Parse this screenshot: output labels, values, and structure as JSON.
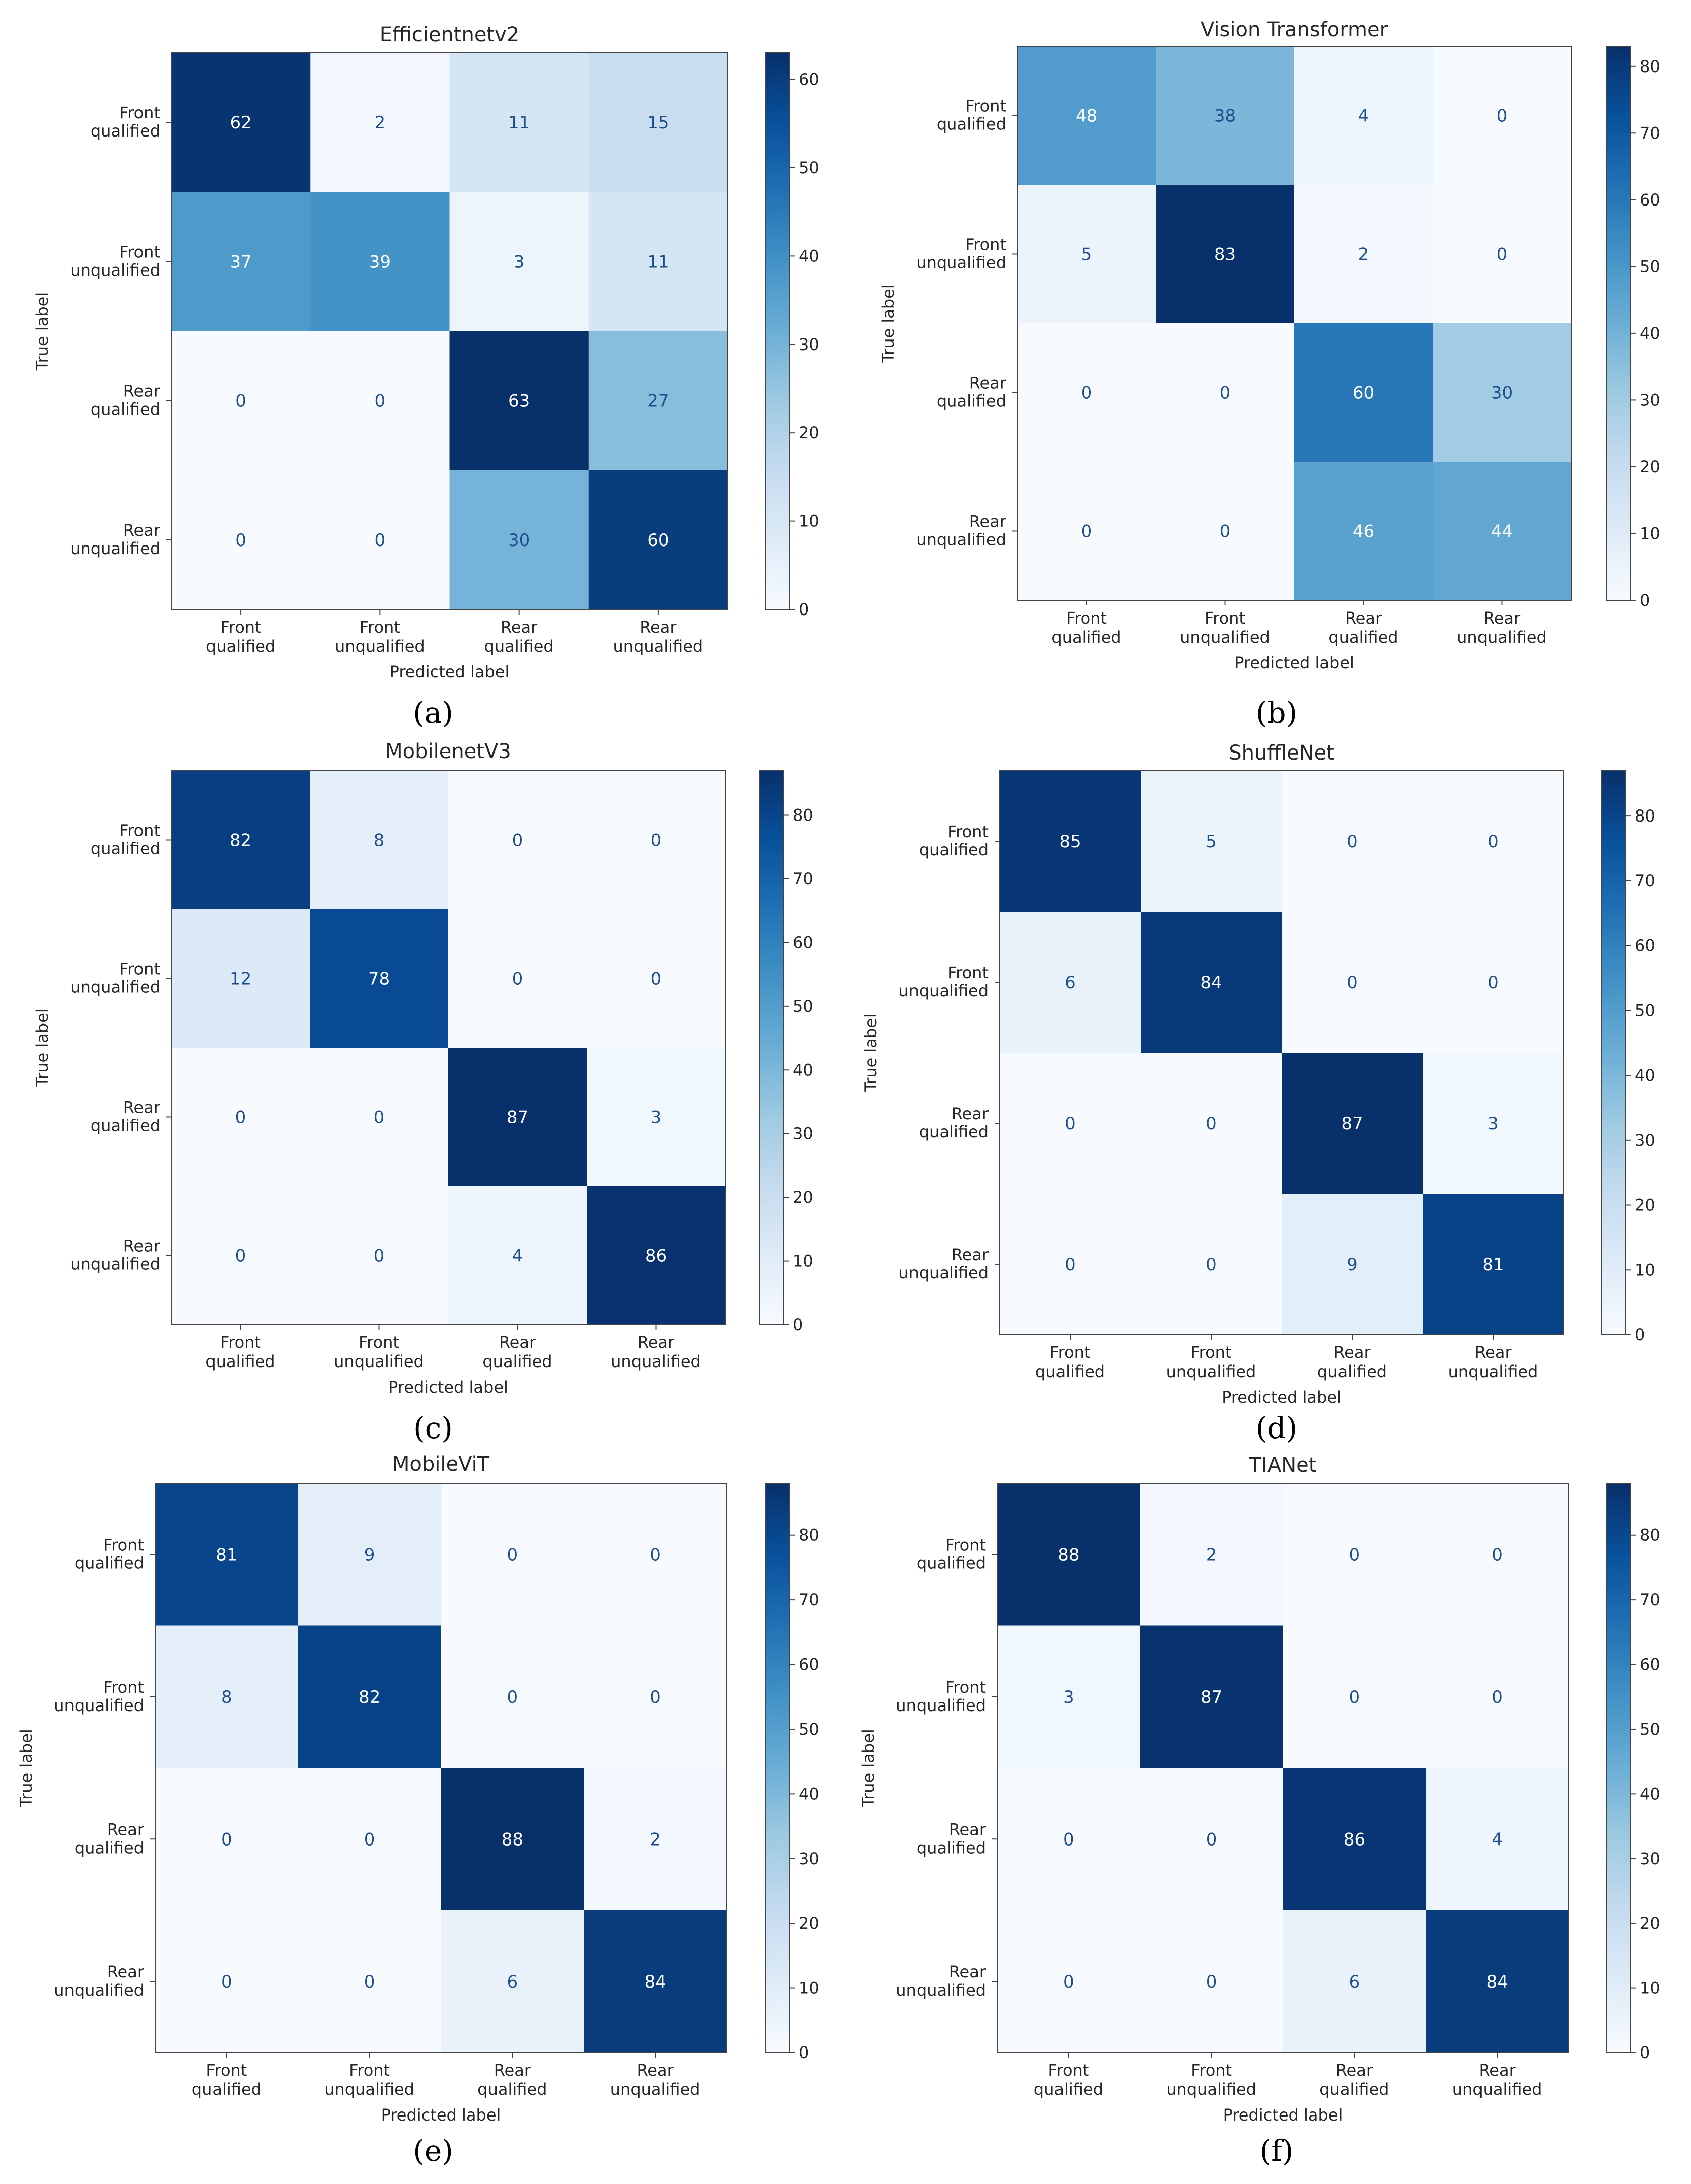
{
  "figure": {
    "captions": [
      "(a)",
      "(b)",
      "(c)",
      "(d)",
      "(e)",
      "(f)"
    ]
  },
  "chart_data": [
    {
      "type": "heatmap",
      "title": "Efficientnetv2",
      "xlabel": "Predicted label",
      "ylabel": "True label",
      "categories": [
        "Front qualified",
        "Front unqualified",
        "Rear qualified",
        "Rear unqualified"
      ],
      "matrix": [
        [
          62,
          2,
          11,
          15
        ],
        [
          37,
          39,
          3,
          11
        ],
        [
          0,
          0,
          63,
          27
        ],
        [
          0,
          0,
          30,
          60
        ]
      ],
      "colorbar_range": [
        0,
        63
      ],
      "colorbar_ticks": [
        0,
        10,
        20,
        30,
        40,
        50,
        60
      ],
      "colormap": "Blues"
    },
    {
      "type": "heatmap",
      "title": "Vision Transformer",
      "xlabel": "Predicted label",
      "ylabel": "True label",
      "categories": [
        "Front qualified",
        "Front unqualified",
        "Rear qualified",
        "Rear unqualified"
      ],
      "matrix": [
        [
          48,
          38,
          4,
          0
        ],
        [
          5,
          83,
          2,
          0
        ],
        [
          0,
          0,
          60,
          30
        ],
        [
          0,
          0,
          46,
          44
        ]
      ],
      "colorbar_range": [
        0,
        83
      ],
      "colorbar_ticks": [
        0,
        10,
        20,
        30,
        40,
        50,
        60,
        70,
        80
      ],
      "colormap": "Blues"
    },
    {
      "type": "heatmap",
      "title": "MobilenetV3",
      "xlabel": "Predicted label",
      "ylabel": "True label",
      "categories": [
        "Front qualified",
        "Front unqualified",
        "Rear qualified",
        "Rear unqualified"
      ],
      "matrix": [
        [
          82,
          8,
          0,
          0
        ],
        [
          12,
          78,
          0,
          0
        ],
        [
          0,
          0,
          87,
          3
        ],
        [
          0,
          0,
          4,
          86
        ]
      ],
      "colorbar_range": [
        0,
        87
      ],
      "colorbar_ticks": [
        0,
        10,
        20,
        30,
        40,
        50,
        60,
        70,
        80
      ],
      "colormap": "Blues"
    },
    {
      "type": "heatmap",
      "title": "ShuffleNet",
      "xlabel": "Predicted label",
      "ylabel": "True label",
      "categories": [
        "Front qualified",
        "Front unqualified",
        "Rear qualified",
        "Rear unqualified"
      ],
      "matrix": [
        [
          85,
          5,
          0,
          0
        ],
        [
          6,
          84,
          0,
          0
        ],
        [
          0,
          0,
          87,
          3
        ],
        [
          0,
          0,
          9,
          81
        ]
      ],
      "colorbar_range": [
        0,
        87
      ],
      "colorbar_ticks": [
        0,
        10,
        20,
        30,
        40,
        50,
        60,
        70,
        80
      ],
      "colormap": "Blues"
    },
    {
      "type": "heatmap",
      "title": "MobileViT",
      "xlabel": "Predicted label",
      "ylabel": "True label",
      "categories": [
        "Front qualified",
        "Front unqualified",
        "Rear qualified",
        "Rear unqualified"
      ],
      "matrix": [
        [
          81,
          9,
          0,
          0
        ],
        [
          8,
          82,
          0,
          0
        ],
        [
          0,
          0,
          88,
          2
        ],
        [
          0,
          0,
          6,
          84
        ]
      ],
      "colorbar_range": [
        0,
        88
      ],
      "colorbar_ticks": [
        0,
        10,
        20,
        30,
        40,
        50,
        60,
        70,
        80
      ],
      "colormap": "Blues"
    },
    {
      "type": "heatmap",
      "title": "TIANet",
      "xlabel": "Predicted label",
      "ylabel": "True label",
      "categories": [
        "Front qualified",
        "Front unqualified",
        "Rear qualified",
        "Rear unqualified"
      ],
      "matrix": [
        [
          88,
          2,
          0,
          0
        ],
        [
          3,
          87,
          0,
          0
        ],
        [
          0,
          0,
          86,
          4
        ],
        [
          0,
          0,
          6,
          84
        ]
      ],
      "colorbar_range": [
        0,
        88
      ],
      "colorbar_ticks": [
        0,
        10,
        20,
        30,
        40,
        50,
        60,
        70,
        80
      ],
      "colormap": "Blues"
    }
  ]
}
